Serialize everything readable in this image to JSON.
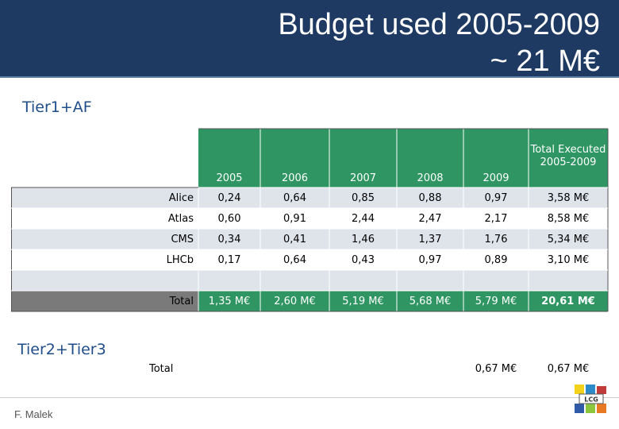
{
  "title": {
    "line1": "Budget used 2005-2009",
    "line2": "~ 21 M€"
  },
  "sections": {
    "tier1": "Tier1+AF",
    "tier2": "Tier2+Tier3"
  },
  "table": {
    "headers": [
      "2005",
      "2006",
      "2007",
      "2008",
      "2009",
      "Total Executed 2005-2009"
    ],
    "rows": [
      {
        "label": "Alice",
        "values": [
          "0,24",
          "0,64",
          "0,85",
          "0,88",
          "0,97",
          "3,58 M€"
        ]
      },
      {
        "label": "Atlas",
        "values": [
          "0,60",
          "0,91",
          "2,44",
          "2,47",
          "2,17",
          "8,58 M€"
        ]
      },
      {
        "label": "CMS",
        "values": [
          "0,34",
          "0,41",
          "1,46",
          "1,37",
          "1,76",
          "5,34 M€"
        ]
      },
      {
        "label": "LHCb",
        "values": [
          "0,17",
          "0,64",
          "0,43",
          "0,97",
          "0,89",
          "3,10 M€"
        ]
      }
    ],
    "total": {
      "label": "Total",
      "values": [
        "1,35 M€",
        "2,60 M€",
        "5,19 M€",
        "5,68 M€",
        "5,79 M€",
        "20,61 M€"
      ]
    }
  },
  "tier2": {
    "label": "Total",
    "value_2009": "0,67 M€",
    "value_total": "0,67 M€"
  },
  "footer": {
    "author": "F. Malek",
    "logo_text": "LCG"
  },
  "colors": {
    "header_bg": "#1e3a63",
    "table_header": "#2f9663",
    "row_band": "#dfe4eb",
    "total_row": "#2f9663",
    "total_label": "#7a7a7a"
  }
}
